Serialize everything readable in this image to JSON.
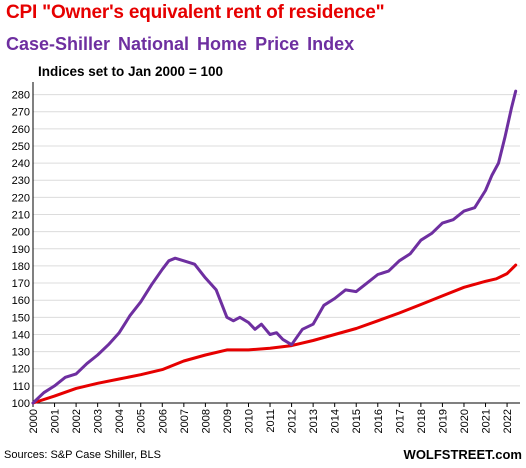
{
  "titles": {
    "line1": "CPI \"Owner's equivalent rent of residence\"",
    "line2": "Case-Shiller  National  Home Price Index",
    "subtitle": "Indices set to Jan 2000 = 100"
  },
  "footer": {
    "source": "Sources: S&P Case Shiller, BLS",
    "brand": "WOLFSTREET.com"
  },
  "colors": {
    "series_cpi": "#e60000",
    "series_cs": "#6e2fa0",
    "grid": "#dcdcdc",
    "axis": "#000000"
  },
  "chart_data": {
    "type": "line",
    "ylim": [
      100,
      285
    ],
    "yticks": [
      100,
      110,
      120,
      130,
      140,
      150,
      160,
      170,
      180,
      190,
      200,
      210,
      220,
      230,
      240,
      250,
      260,
      270,
      280
    ],
    "xlim": [
      2000,
      2022.6
    ],
    "xticks": [
      "2000",
      "2001",
      "2002",
      "2003",
      "2004",
      "2005",
      "2006",
      "2007",
      "2008",
      "2009",
      "2010",
      "2011",
      "2012",
      "2013",
      "2014",
      "2015",
      "2016",
      "2017",
      "2018",
      "2019",
      "2020",
      "2021",
      "2022"
    ],
    "grid": "horizontal",
    "series": [
      {
        "name": "CPI \"Owner's equivalent rent of residence\"",
        "x": [
          2000,
          2001,
          2002,
          2003,
          2004,
          2005,
          2006,
          2007,
          2008,
          2009,
          2010,
          2011,
          2012,
          2013,
          2014,
          2015,
          2016,
          2017,
          2018,
          2019,
          2020,
          2021,
          2021.5,
          2022,
          2022.4
        ],
        "values": [
          100,
          104,
          108.5,
          111.5,
          114,
          116.5,
          119.5,
          124.5,
          128,
          131,
          131,
          132,
          133.5,
          136.5,
          140,
          143.5,
          148,
          152.5,
          157.5,
          162.5,
          167.5,
          171,
          172.5,
          175.5,
          180.5
        ]
      },
      {
        "name": "Case-Shiller  National  Home Price Index",
        "x": [
          2000,
          2000.5,
          2001,
          2001.5,
          2002,
          2002.5,
          2003,
          2003.5,
          2004,
          2004.5,
          2005,
          2005.5,
          2006,
          2006.3,
          2006.6,
          2007,
          2007.5,
          2008,
          2008.5,
          2009,
          2009.3,
          2009.6,
          2010,
          2010.3,
          2010.6,
          2011,
          2011.3,
          2011.6,
          2012,
          2012.5,
          2013,
          2013.5,
          2014,
          2014.5,
          2015,
          2015.5,
          2016,
          2016.5,
          2017,
          2017.5,
          2018,
          2018.5,
          2019,
          2019.5,
          2020,
          2020.5,
          2021,
          2021.3,
          2021.6,
          2021.9,
          2022.2,
          2022.4
        ],
        "values": [
          100,
          106,
          110,
          115,
          117,
          123,
          128,
          134,
          141,
          151,
          159,
          169,
          178,
          183,
          184.5,
          183,
          181,
          173,
          166,
          150,
          148,
          150,
          147,
          143,
          146,
          140,
          141,
          137,
          134,
          143,
          146,
          157,
          161,
          166,
          165,
          170,
          175,
          177,
          183,
          187,
          195,
          199,
          205,
          207,
          212,
          214,
          224,
          233,
          240,
          255,
          272,
          282
        ]
      }
    ]
  }
}
